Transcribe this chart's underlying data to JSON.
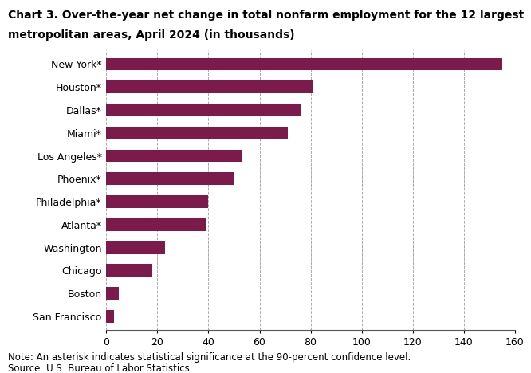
{
  "categories": [
    "New York*",
    "Houston*",
    "Dallas*",
    "Miami*",
    "Los Angeles*",
    "Phoenix*",
    "Philadelphia*",
    "Atlanta*",
    "Washington",
    "Chicago",
    "Boston",
    "San Francisco"
  ],
  "values": [
    155.0,
    81.0,
    76.0,
    71.0,
    53.0,
    50.0,
    40.0,
    39.0,
    23.0,
    18.0,
    5.0,
    3.0
  ],
  "bar_color": "#7B1A4B",
  "title_line1": "Chart 3. Over-the-year net change in total nonfarm employment for the 12 largest",
  "title_line2": "metropolitan areas, April 2024 (in thousands)",
  "xlim": [
    0,
    160
  ],
  "xticks": [
    0,
    20,
    40,
    60,
    80,
    100,
    120,
    140,
    160
  ],
  "note1": "Note: An asterisk indicates statistical significance at the 90-percent confidence level.",
  "note2": "Source: U.S. Bureau of Labor Statistics.",
  "background_color": "#ffffff",
  "grid_color": "#aaaaaa",
  "bar_height": 0.55,
  "title_fontsize": 10.0,
  "tick_fontsize": 9.0,
  "note_fontsize": 8.5
}
